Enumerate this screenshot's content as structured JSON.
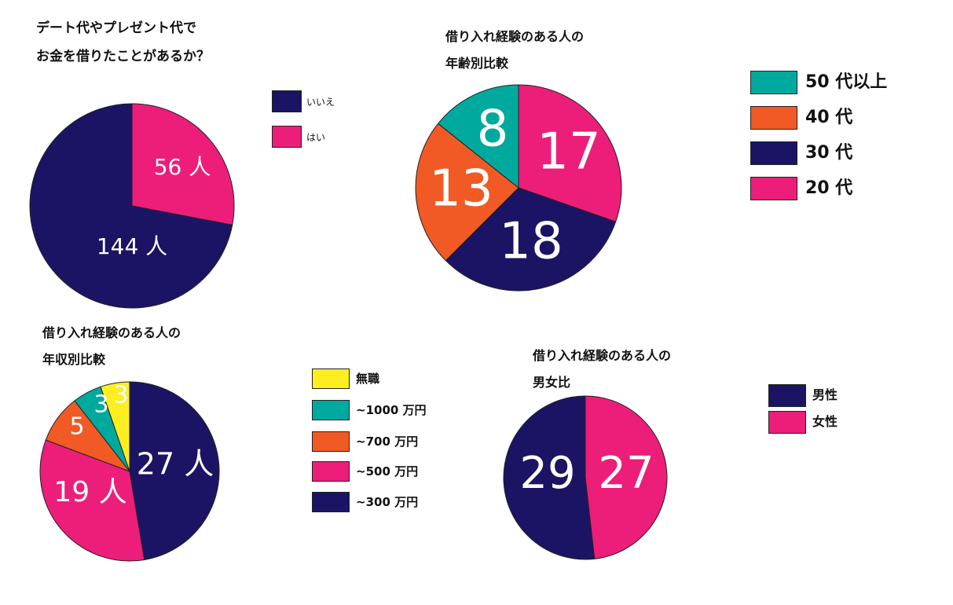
{
  "chart_data": [
    {
      "type": "pie",
      "title_lines": [
        "デート代やプレゼント代で",
        "お金を借りたことがあるか？"
      ],
      "labels": [
        "はい",
        "いいえ"
      ],
      "values": [
        56,
        144
      ],
      "slice_labels": [
        "56 人",
        "144 人"
      ],
      "colors": [
        "#ec1e79",
        "#1b1464"
      ],
      "legend": [
        {
          "label": "いいえ",
          "color": "#1b1464"
        },
        {
          "label": "はい",
          "color": "#ec1e79"
        }
      ]
    },
    {
      "type": "pie",
      "title_lines": [
        "借り入れ経験のある人の",
        "年齢別比較"
      ],
      "labels": [
        "20 代",
        "30 代",
        "40 代",
        "50 代以上"
      ],
      "values": [
        17,
        18,
        13,
        8
      ],
      "slice_labels": [
        "17",
        "18",
        "13",
        "8"
      ],
      "colors": [
        "#ec1e79",
        "#1b1464",
        "#f15a24",
        "#00a99d"
      ],
      "legend": [
        {
          "label": "50 代以上",
          "color": "#00a99d"
        },
        {
          "label": "40 代",
          "color": "#f15a24"
        },
        {
          "label": "30 代",
          "color": "#1b1464"
        },
        {
          "label": "20 代",
          "color": "#ec1e79"
        }
      ]
    },
    {
      "type": "pie",
      "title_lines": [
        "借り入れ経験のある人の",
        "年収別比較"
      ],
      "labels": [
        "~300 万円",
        "~500 万円",
        "~700 万円",
        "~1000 万円",
        "無職"
      ],
      "values": [
        27,
        19,
        5,
        3,
        3
      ],
      "slice_labels": [
        "27 人",
        "19 人",
        "5",
        "3",
        "3"
      ],
      "colors": [
        "#1b1464",
        "#ec1e79",
        "#f15a24",
        "#00a99d",
        "#fcee21"
      ],
      "legend": [
        {
          "label": "無職",
          "color": "#fcee21"
        },
        {
          "label": "~1000 万円",
          "color": "#00a99d"
        },
        {
          "label": " ~700 万円",
          "color": "#f15a24"
        },
        {
          "label": "~500 万円",
          "color": "#ec1e79"
        },
        {
          "label": "~300 万円",
          "color": "#1b1464"
        }
      ]
    },
    {
      "type": "pie",
      "title_lines": [
        "借り入れ経験のある人の",
        "男女比"
      ],
      "labels": [
        "女性",
        "男性"
      ],
      "values": [
        27,
        29
      ],
      "slice_labels": [
        "27",
        "29"
      ],
      "colors": [
        "#ec1e79",
        "#1b1464"
      ],
      "legend": [
        {
          "label": "男性",
          "color": "#1b1464"
        },
        {
          "label": "女性",
          "color": "#ec1e79"
        }
      ]
    }
  ]
}
